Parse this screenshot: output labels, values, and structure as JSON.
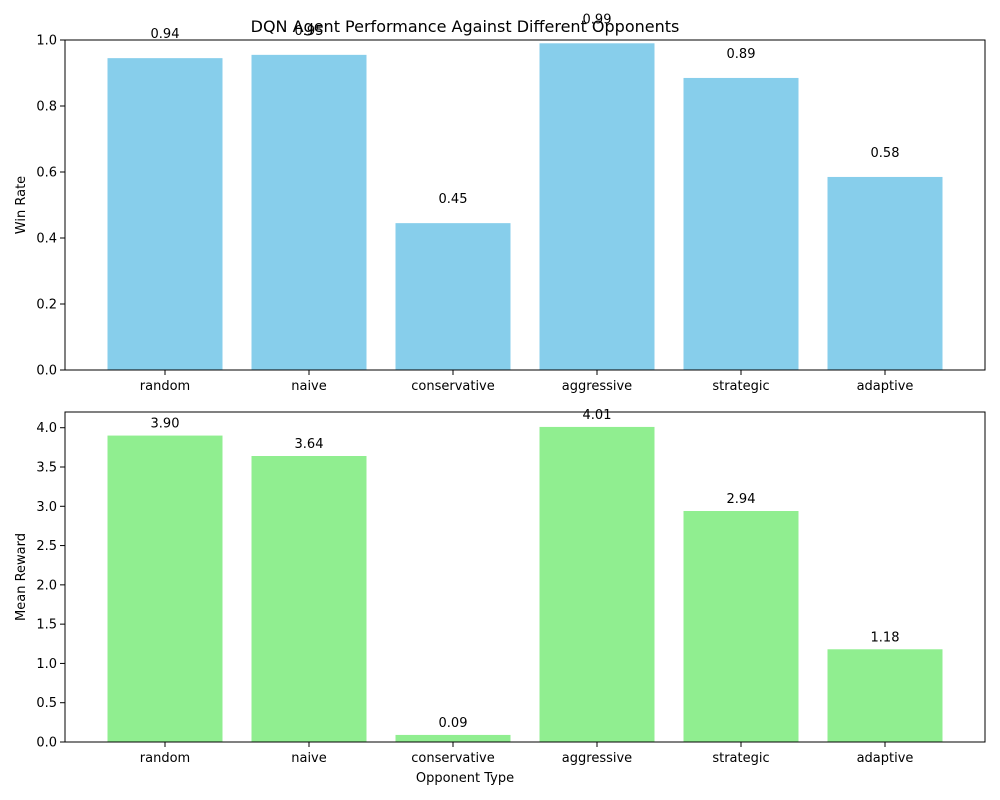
{
  "chart_data": [
    {
      "type": "bar",
      "title": "DQN Agent Performance Against Different Opponents",
      "xlabel": "",
      "ylabel": "Win Rate",
      "categories": [
        "random",
        "naive",
        "conservative",
        "aggressive",
        "strategic",
        "adaptive"
      ],
      "values": [
        0.945,
        0.955,
        0.445,
        0.99,
        0.885,
        0.585
      ],
      "value_labels": [
        "0.94",
        "0.95",
        "0.45",
        "0.99",
        "0.89",
        "0.58"
      ],
      "ylim": [
        0,
        1.0
      ],
      "yticks": [
        "0.0",
        "0.2",
        "0.4",
        "0.6",
        "0.8",
        "1.0"
      ],
      "bar_color": "#87ceeb",
      "grid": false
    },
    {
      "type": "bar",
      "title": "",
      "xlabel": "Opponent Type",
      "ylabel": "Mean Reward",
      "categories": [
        "random",
        "naive",
        "conservative",
        "aggressive",
        "strategic",
        "adaptive"
      ],
      "values": [
        3.9,
        3.64,
        0.09,
        4.01,
        2.94,
        1.18
      ],
      "value_labels": [
        "3.90",
        "3.64",
        "0.09",
        "4.01",
        "2.94",
        "1.18"
      ],
      "ylim": [
        0,
        4.2
      ],
      "yticks": [
        "0.0",
        "0.5",
        "1.0",
        "1.5",
        "2.0",
        "2.5",
        "3.0",
        "3.5",
        "4.0"
      ],
      "bar_color": "#90ee90",
      "grid": false
    }
  ]
}
